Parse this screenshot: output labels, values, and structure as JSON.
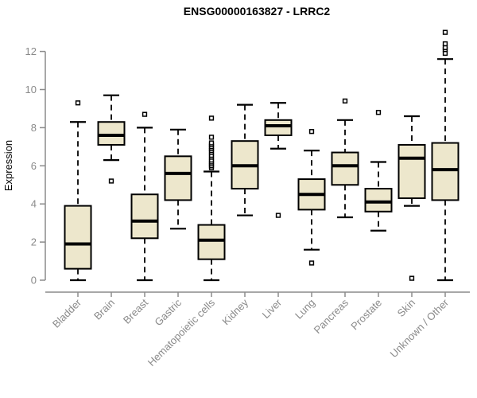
{
  "chart_data": {
    "type": "box",
    "title": "ENSG00000163827 - LRRC2",
    "ylabel": "Expression",
    "xlabel": "",
    "ylim": [
      0,
      13
    ],
    "yticks": [
      0,
      2,
      4,
      6,
      8,
      10,
      12
    ],
    "grid": false,
    "legend": "none",
    "categories": [
      "Bladder",
      "Brain",
      "Breast",
      "Gastric",
      "Hematopoietic cells",
      "Kidney",
      "Liver",
      "Lung",
      "Pancreas",
      "Prostate",
      "Skin",
      "Unknown / Other"
    ],
    "boxes": [
      {
        "category": "Bladder",
        "whisker_low": 0.0,
        "q1": 0.6,
        "median": 1.9,
        "q3": 3.9,
        "whisker_high": 8.3,
        "outliers": [
          9.3
        ]
      },
      {
        "category": "Brain",
        "whisker_low": 6.3,
        "q1": 7.1,
        "median": 7.6,
        "q3": 8.3,
        "whisker_high": 9.7,
        "outliers": [
          5.2
        ]
      },
      {
        "category": "Breast",
        "whisker_low": 0.0,
        "q1": 2.2,
        "median": 3.1,
        "q3": 4.5,
        "whisker_high": 8.0,
        "outliers": [
          8.7
        ]
      },
      {
        "category": "Gastric",
        "whisker_low": 2.7,
        "q1": 4.2,
        "median": 5.6,
        "q3": 6.5,
        "whisker_high": 7.9,
        "outliers": []
      },
      {
        "category": "Hematopoietic cells",
        "whisker_low": 0.0,
        "q1": 1.1,
        "median": 2.1,
        "q3": 2.9,
        "whisker_high": 5.7,
        "outliers": [
          5.9,
          6.0,
          6.1,
          6.2,
          6.3,
          6.45,
          6.55,
          6.7,
          6.8,
          6.9,
          7.0,
          7.1,
          7.2,
          7.5,
          8.5
        ]
      },
      {
        "category": "Kidney",
        "whisker_low": 3.4,
        "q1": 4.8,
        "median": 6.0,
        "q3": 7.3,
        "whisker_high": 9.2,
        "outliers": []
      },
      {
        "category": "Liver",
        "whisker_low": 6.9,
        "q1": 7.6,
        "median": 8.1,
        "q3": 8.4,
        "whisker_high": 9.3,
        "outliers": [
          3.4
        ]
      },
      {
        "category": "Lung",
        "whisker_low": 1.6,
        "q1": 3.7,
        "median": 4.5,
        "q3": 5.3,
        "whisker_high": 6.8,
        "outliers": [
          7.8,
          0.9
        ]
      },
      {
        "category": "Pancreas",
        "whisker_low": 3.3,
        "q1": 5.0,
        "median": 6.0,
        "q3": 6.7,
        "whisker_high": 8.4,
        "outliers": [
          9.4
        ]
      },
      {
        "category": "Prostate",
        "whisker_low": 2.6,
        "q1": 3.6,
        "median": 4.1,
        "q3": 4.8,
        "whisker_high": 6.2,
        "outliers": [
          8.8
        ]
      },
      {
        "category": "Skin",
        "whisker_low": 3.9,
        "q1": 4.3,
        "median": 6.4,
        "q3": 7.1,
        "whisker_high": 8.6,
        "outliers": [
          0.1
        ]
      },
      {
        "category": "Unknown / Other",
        "whisker_low": 0.0,
        "q1": 4.2,
        "median": 5.8,
        "q3": 7.2,
        "whisker_high": 11.6,
        "outliers": [
          11.9,
          12.1,
          12.2,
          12.4,
          13.0
        ]
      }
    ],
    "colors": {
      "box_fill": "#EDE7CC",
      "box_stroke": "#000000",
      "median": "#000000",
      "whisker": "#000000",
      "outlier_stroke": "#000000",
      "outlier_fill": "#FFFFFF",
      "axis": "#8C8C8C",
      "label": "#8A8A8A",
      "title": "#000000",
      "background": "#FFFFFF"
    }
  }
}
